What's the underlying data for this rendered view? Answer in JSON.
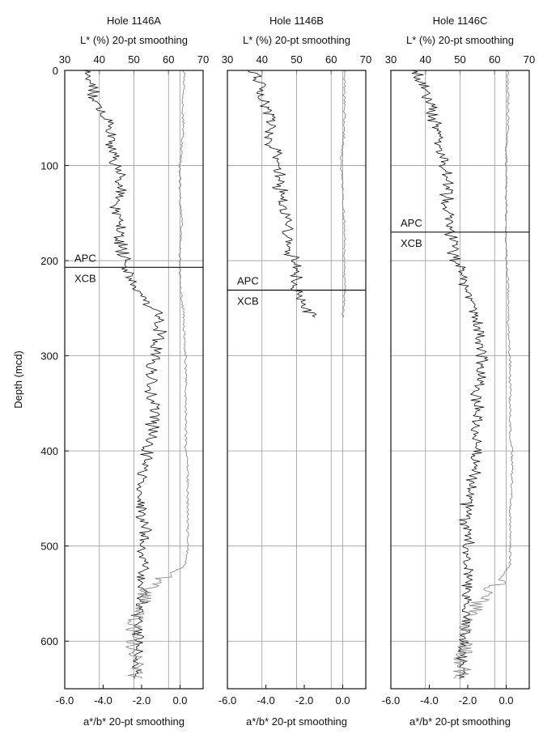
{
  "figure": {
    "ylabel": "Depth (mcd)",
    "top_axis_label": "L* (%) 20-pt smoothing",
    "bottom_axis_label": "a*/b* 20-pt smoothing"
  },
  "chart_data": [
    {
      "type": "line",
      "title": "Hole 1146A",
      "xlabel_top": "L* (%) 20-pt smoothing",
      "xlabel_bottom": "a*/b* 20-pt smoothing",
      "ylabel": "Depth (mcd)",
      "xlim_top": [
        30,
        70
      ],
      "xlim_bottom": [
        -6.0,
        1.2
      ],
      "ylim": [
        0,
        650
      ],
      "ylim_inverted": true,
      "xticks_top": [
        30,
        40,
        50,
        60,
        70
      ],
      "xticks_bottom": [
        "-6.0",
        "-4.0",
        "-2.0",
        "0.0"
      ],
      "yticks": [
        0,
        100,
        200,
        300,
        400,
        500,
        600
      ],
      "grid": true,
      "boundary": {
        "depth": 207,
        "label_above": "APC",
        "label_below": "XCB"
      },
      "series": [
        {
          "key": "L",
          "color": "#111111",
          "depth": [
            0,
            10,
            20,
            30,
            40,
            50,
            60,
            70,
            80,
            90,
            100,
            110,
            120,
            130,
            140,
            150,
            160,
            170,
            180,
            190,
            200,
            210,
            220,
            230,
            240,
            250,
            260,
            270,
            280,
            290,
            300,
            320,
            340,
            360,
            380,
            400,
            420,
            440,
            460,
            480,
            500,
            520,
            540,
            560,
            580,
            600,
            620,
            640
          ],
          "values": [
            37,
            38,
            38,
            39,
            40,
            42,
            43,
            43,
            44,
            45,
            45,
            46,
            46,
            46,
            45,
            45,
            46,
            46,
            46,
            47,
            48,
            48,
            49,
            51,
            53,
            55,
            57,
            58,
            57,
            56,
            56,
            55,
            55,
            56,
            55,
            54,
            53,
            52,
            52,
            53,
            53,
            53,
            52,
            52,
            51,
            51,
            51,
            51
          ]
        },
        {
          "key": "ab",
          "color": "#8c8c8c",
          "depth": [
            0,
            20,
            40,
            60,
            80,
            100,
            120,
            140,
            160,
            180,
            200,
            220,
            240,
            260,
            280,
            300,
            320,
            340,
            360,
            380,
            400,
            420,
            440,
            460,
            480,
            500,
            520,
            540,
            560,
            580,
            600,
            620,
            640
          ],
          "values": [
            0.2,
            0.2,
            0.1,
            0.2,
            0.1,
            0.0,
            0.0,
            0.0,
            0.1,
            0.0,
            0.0,
            0.0,
            0.1,
            0.2,
            0.2,
            0.3,
            0.3,
            0.3,
            0.3,
            0.3,
            0.3,
            0.4,
            0.4,
            0.4,
            0.4,
            0.4,
            0.3,
            -1.5,
            -2.0,
            -2.4,
            -2.4,
            -2.3,
            -2.4
          ]
        }
      ]
    },
    {
      "type": "line",
      "title": "Hole 1146B",
      "xlabel_top": "L* (%) 20-pt smoothing",
      "xlabel_bottom": "a*/b* 20-pt smoothing",
      "ylabel": "Depth (mcd)",
      "xlim_top": [
        30,
        70
      ],
      "xlim_bottom": [
        -6.0,
        1.2
      ],
      "ylim": [
        0,
        650
      ],
      "ylim_inverted": true,
      "xticks_top": [
        30,
        40,
        50,
        60,
        70
      ],
      "xticks_bottom": [
        "-6.0",
        "-4.0",
        "-2.0",
        "0.0"
      ],
      "yticks": [
        0,
        100,
        200,
        300,
        400,
        500,
        600
      ],
      "grid": true,
      "boundary": {
        "depth": 231,
        "label_above": "APC",
        "label_below": "XCB"
      },
      "series": [
        {
          "key": "L",
          "color": "#111111",
          "depth": [
            0,
            10,
            20,
            30,
            40,
            50,
            60,
            70,
            80,
            90,
            100,
            110,
            120,
            130,
            140,
            150,
            160,
            170,
            180,
            190,
            200,
            210,
            220,
            230,
            240,
            250,
            260
          ],
          "values": [
            38,
            39,
            40,
            40,
            41,
            42,
            43,
            42,
            43,
            44,
            44,
            45,
            45,
            46,
            46,
            47,
            47,
            47,
            48,
            48,
            49,
            50,
            50,
            50,
            51,
            53,
            56
          ]
        },
        {
          "key": "ab",
          "color": "#8c8c8c",
          "depth": [
            0,
            20,
            40,
            60,
            80,
            100,
            120,
            140,
            160,
            180,
            200,
            220,
            240,
            260
          ],
          "values": [
            0.1,
            0.1,
            0.1,
            0.1,
            0.0,
            -0.1,
            0.0,
            0.0,
            0.1,
            0.1,
            0.1,
            0.1,
            0.1,
            0.0
          ]
        }
      ]
    },
    {
      "type": "line",
      "title": "Hole 1146C",
      "xlabel_top": "L* (%) 20-pt smoothing",
      "xlabel_bottom": "a*/b* 20-pt smoothing",
      "ylabel": "Depth (mcd)",
      "xlim_top": [
        30,
        70
      ],
      "xlim_bottom": [
        -6.0,
        1.2
      ],
      "ylim": [
        0,
        650
      ],
      "ylim_inverted": true,
      "xticks_top": [
        30,
        40,
        50,
        60,
        70
      ],
      "xticks_bottom": [
        "-6.0",
        "-4.0",
        "-2.0",
        "0.0"
      ],
      "yticks": [
        0,
        100,
        200,
        300,
        400,
        500,
        600
      ],
      "grid": true,
      "boundary": {
        "depth": 170,
        "label_above": "APC",
        "label_below": "XCB"
      },
      "series": [
        {
          "key": "L",
          "color": "#111111",
          "depth": [
            0,
            10,
            20,
            30,
            40,
            50,
            60,
            70,
            80,
            90,
            100,
            110,
            120,
            130,
            140,
            150,
            160,
            170,
            180,
            190,
            200,
            210,
            220,
            230,
            240,
            250,
            260,
            270,
            280,
            290,
            300,
            320,
            340,
            360,
            380,
            400,
            420,
            440,
            460,
            480,
            500,
            520,
            540,
            560,
            580,
            600,
            620,
            640
          ],
          "values": [
            37,
            38,
            40,
            41,
            42,
            42,
            43,
            44,
            44,
            45,
            45,
            46,
            46,
            46,
            46,
            47,
            47,
            47,
            48,
            48,
            49,
            50,
            51,
            52,
            53,
            54,
            55,
            55,
            56,
            56,
            56,
            56,
            55,
            55,
            55,
            55,
            54,
            53,
            52,
            52,
            52,
            52,
            52,
            52,
            52,
            51,
            51,
            51
          ]
        },
        {
          "key": "ab",
          "color": "#8c8c8c",
          "depth": [
            0,
            20,
            40,
            60,
            80,
            100,
            120,
            140,
            160,
            180,
            200,
            220,
            240,
            260,
            280,
            300,
            320,
            340,
            360,
            380,
            400,
            420,
            440,
            460,
            480,
            500,
            520,
            540,
            560,
            580,
            600,
            620,
            640
          ],
          "values": [
            0.1,
            0.1,
            0.1,
            0.1,
            0.0,
            0.0,
            0.0,
            0.0,
            0.0,
            0.0,
            0.0,
            0.1,
            0.1,
            0.1,
            0.1,
            0.2,
            0.2,
            0.2,
            0.2,
            0.2,
            0.3,
            0.3,
            0.3,
            0.2,
            0.2,
            0.2,
            0.2,
            -0.5,
            -1.5,
            -2.0,
            -2.0,
            -2.3,
            -2.3
          ]
        }
      ]
    }
  ]
}
